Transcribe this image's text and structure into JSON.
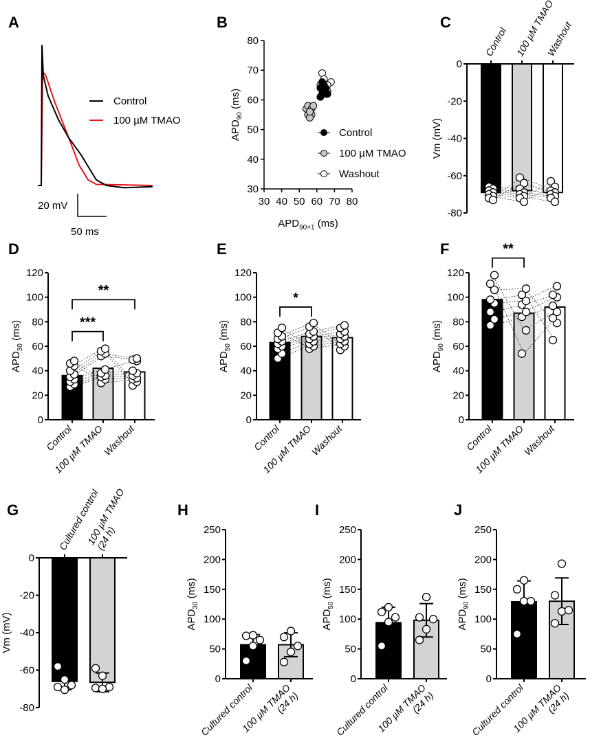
{
  "colors": {
    "control": "#000000",
    "tmao": "#d3d3d3",
    "washout": "#ffffff",
    "trace_control": "#000000",
    "trace_tmao": "#e8141b"
  },
  "panel_labels": [
    "A",
    "B",
    "C",
    "D",
    "E",
    "F",
    "G",
    "H",
    "I",
    "J"
  ],
  "chart_data": [
    {
      "id": "A",
      "type": "line",
      "title": "",
      "legend": [
        "Control",
        "100 µM TMAO"
      ],
      "legend_position": "right",
      "scale_bar": {
        "voltage_label": "20 mV",
        "time_label": "50 ms",
        "voltage_mV": 20,
        "time_ms": 50
      },
      "series": [
        {
          "name": "Control",
          "t_ms": [
            0,
            1.2,
            3.6,
            11.9,
            29.8,
            47.6,
            69,
            83.3,
            95.2,
            113,
            143,
            193
          ],
          "v_mV": [
            0,
            124,
            97,
            79,
            58,
            42,
            27,
            15,
            5,
            0,
            -2,
            -1
          ]
        },
        {
          "name": "100 µM TMAO",
          "t_ms": [
            0,
            2.4,
            7.1,
            23.8,
            47.6,
            65.5,
            81,
            95.2,
            193
          ],
          "v_mV": [
            0,
            100,
            98,
            73,
            42,
            18,
            5,
            1,
            0
          ]
        }
      ]
    },
    {
      "id": "B",
      "type": "scatter",
      "xlabel_main": "APD",
      "xlabel_sub": "90+1",
      "xlabel_unit": "(ms)",
      "ylabel_main": "APD",
      "ylabel_sub": "90",
      "ylabel_unit": "(ms)",
      "xlim": [
        30,
        80
      ],
      "ylim": [
        30,
        80
      ],
      "xticks": [
        30,
        40,
        50,
        60,
        70,
        80
      ],
      "yticks": [
        30,
        40,
        50,
        60,
        70,
        80
      ],
      "legend_position": "bottom-right",
      "series": [
        {
          "name": "Control",
          "points": [
            [
              62,
              61
            ],
            [
              63,
              62
            ],
            [
              64,
              63
            ],
            [
              65,
              63
            ],
            [
              62,
              64
            ],
            [
              63,
              66
            ],
            [
              64,
              65
            ],
            [
              66,
              62
            ],
            [
              65,
              64
            ]
          ]
        },
        {
          "name": "100 µM TMAO",
          "points": [
            [
              54,
              57
            ],
            [
              55,
              58
            ],
            [
              56,
              56
            ],
            [
              57,
              55
            ],
            [
              55,
              55
            ],
            [
              56,
              54
            ],
            [
              57,
              57
            ],
            [
              58,
              58
            ],
            [
              56,
              56
            ]
          ]
        },
        {
          "name": "Washout",
          "points": [
            [
              63,
              69
            ],
            [
              64,
              67
            ],
            [
              68,
              66
            ],
            [
              66,
              65
            ],
            [
              65,
              62
            ],
            [
              64,
              64
            ],
            [
              62,
              65
            ],
            [
              66,
              63
            ]
          ]
        }
      ]
    },
    {
      "id": "C",
      "type": "bar",
      "ylabel_main": "Vm (mV)",
      "ylabel_sub": "",
      "ylabel_unit": "",
      "ylim": [
        -80,
        0
      ],
      "yticks": [
        0,
        -20,
        -40,
        -60,
        -80
      ],
      "categories": [
        [
          "Control"
        ],
        [
          "100 µM TMAO"
        ],
        [
          "Washout"
        ]
      ],
      "values": [
        -69,
        -68,
        -69
      ],
      "paired": true,
      "points": [
        [
          -66,
          -67,
          -68,
          -69,
          -70,
          -71,
          -72,
          -73
        ],
        [
          -61,
          -64,
          -67,
          -69,
          -70,
          -71,
          -72,
          -74
        ],
        [
          -63,
          -66,
          -68,
          -69,
          -70,
          -71,
          -72,
          -74
        ]
      ],
      "significance": []
    },
    {
      "id": "D",
      "type": "bar",
      "ylabel_main": "APD",
      "ylabel_sub": "30",
      "ylabel_unit": "(ms)",
      "ylim": [
        0,
        120
      ],
      "yticks": [
        0,
        20,
        40,
        60,
        80,
        100,
        120
      ],
      "categories": [
        [
          "Control"
        ],
        [
          "100 µM TMAO"
        ],
        [
          "Washout"
        ]
      ],
      "values": [
        36,
        42,
        39
      ],
      "paired": true,
      "points": [
        [
          27,
          29,
          31,
          33,
          35,
          37,
          40,
          44,
          46,
          48
        ],
        [
          30,
          33,
          35,
          36,
          38,
          41,
          52,
          54,
          56,
          58
        ],
        [
          28,
          31,
          33,
          34,
          36,
          38,
          40,
          48,
          49,
          50
        ]
      ],
      "significance": [
        {
          "from": 0,
          "to": 1,
          "y": 72,
          "label": "***"
        },
        {
          "from": 0,
          "to": 2,
          "y": 98,
          "label": "**"
        }
      ]
    },
    {
      "id": "E",
      "type": "bar",
      "ylabel_main": "APD",
      "ylabel_sub": "50",
      "ylabel_unit": "(ms)",
      "ylim": [
        0,
        120
      ],
      "yticks": [
        0,
        20,
        40,
        60,
        80,
        100,
        120
      ],
      "categories": [
        [
          "Control"
        ],
        [
          "100 µM TMAO"
        ],
        [
          "Washout"
        ]
      ],
      "values": [
        63,
        68,
        67
      ],
      "paired": true,
      "points": [
        [
          50,
          54,
          58,
          60,
          62,
          64,
          66,
          68,
          71,
          75
        ],
        [
          58,
          60,
          62,
          64,
          66,
          68,
          70,
          72,
          76,
          79
        ],
        [
          57,
          60,
          62,
          64,
          66,
          68,
          70,
          72,
          75,
          77
        ]
      ],
      "significance": [
        {
          "from": 0,
          "to": 1,
          "y": 92,
          "label": "*"
        }
      ]
    },
    {
      "id": "F",
      "type": "bar",
      "ylabel_main": "APD",
      "ylabel_sub": "90",
      "ylabel_unit": "(ms)",
      "ylim": [
        0,
        120
      ],
      "yticks": [
        0,
        20,
        40,
        60,
        80,
        100,
        120
      ],
      "categories": [
        [
          "Control"
        ],
        [
          "100 µM TMAO"
        ],
        [
          "Washout"
        ]
      ],
      "values": [
        98,
        87,
        92
      ],
      "paired": true,
      "points": [
        [
          77,
          82,
          88,
          95,
          98,
          106,
          111,
          118
        ],
        [
          54,
          73,
          84,
          88,
          94,
          97,
          102,
          107
        ],
        [
          65,
          79,
          83,
          88,
          93,
          100,
          102,
          109
        ]
      ],
      "significance": [
        {
          "from": 0,
          "to": 1,
          "y": 132,
          "label": "**"
        }
      ]
    },
    {
      "id": "G",
      "type": "bar",
      "ylabel_main": "Vm (mV)",
      "ylabel_sub": "",
      "ylabel_unit": "",
      "ylim": [
        -80,
        0
      ],
      "yticks": [
        0,
        -20,
        -40,
        -60,
        -80
      ],
      "categories": [
        [
          "Cultured control"
        ],
        [
          "100 µM TMAO",
          "(24 h)"
        ]
      ],
      "values": [
        -66,
        -66.5
      ],
      "sd": [
        4.5,
        5
      ],
      "paired": false,
      "points": [
        [
          -58,
          -65,
          -68,
          -69,
          -70.5
        ],
        [
          -59,
          -63,
          -69,
          -69.5,
          -70
        ]
      ],
      "significance": []
    },
    {
      "id": "H",
      "type": "bar",
      "ylabel_main": "APD",
      "ylabel_sub": "30",
      "ylabel_unit": "(ms)",
      "ylim": [
        0,
        250
      ],
      "yticks": [
        0,
        50,
        100,
        150,
        200,
        250
      ],
      "categories": [
        [
          "Cultured control"
        ],
        [
          "100 µM TMAO",
          "(24 h)"
        ]
      ],
      "values": [
        57,
        57
      ],
      "sd": [
        17,
        20
      ],
      "paired": false,
      "points": [
        [
          30,
          55,
          65,
          72,
          73
        ],
        [
          28,
          45,
          55,
          70,
          80
        ]
      ],
      "significance": []
    },
    {
      "id": "I",
      "type": "bar",
      "ylabel_main": "APD",
      "ylabel_sub": "50",
      "ylabel_unit": "(ms)",
      "ylim": [
        0,
        250
      ],
      "yticks": [
        0,
        50,
        100,
        150,
        200,
        250
      ],
      "categories": [
        [
          "Cultured control"
        ],
        [
          "100 µM TMAO",
          "(24 h)"
        ]
      ],
      "values": [
        94,
        98
      ],
      "sd": [
        26,
        28
      ],
      "paired": false,
      "points": [
        [
          55,
          95,
          103,
          112,
          120
        ],
        [
          65,
          83,
          100,
          103,
          137
        ]
      ],
      "significance": []
    },
    {
      "id": "J",
      "type": "bar",
      "ylabel_main": "APD",
      "ylabel_sub": "90",
      "ylabel_unit": "(ms)",
      "ylim": [
        0,
        250
      ],
      "yticks": [
        0,
        50,
        100,
        150,
        200,
        250
      ],
      "categories": [
        [
          "Cultured control"
        ],
        [
          "100 µM TMAO",
          "(24 h)"
        ]
      ],
      "values": [
        129,
        130
      ],
      "sd": [
        35,
        39
      ],
      "paired": false,
      "points": [
        [
          75,
          130,
          130,
          150,
          165
        ],
        [
          93,
          113,
          115,
          140,
          193
        ]
      ],
      "significance": []
    }
  ]
}
